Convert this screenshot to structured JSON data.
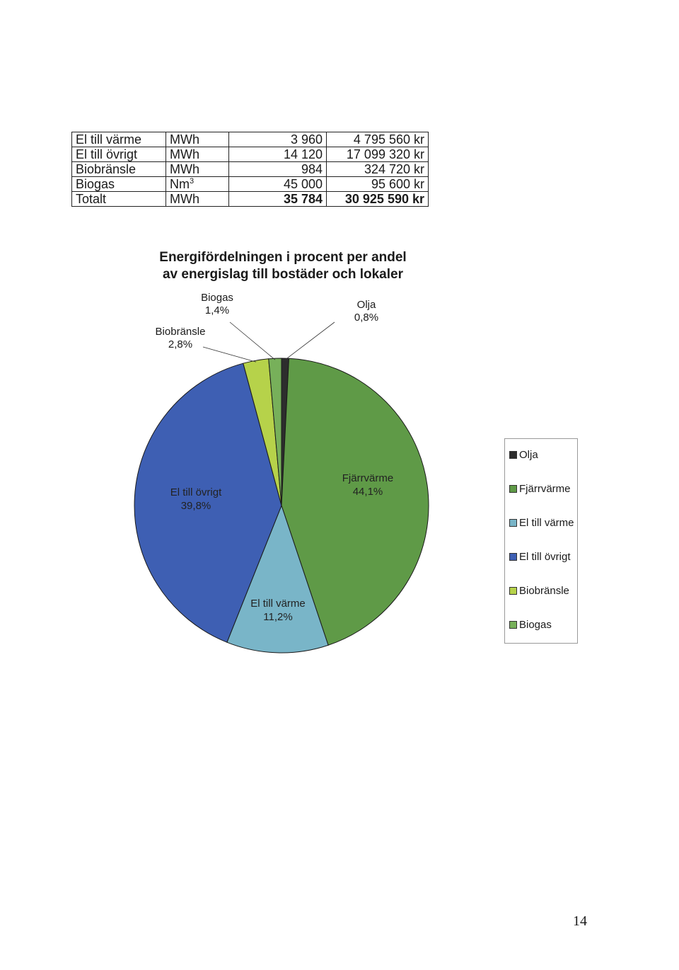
{
  "table": {
    "rows": [
      {
        "name": "El till värme",
        "unit": "MWh",
        "unit_sup": "",
        "amount": "3 960",
        "cost": "4 795 560 kr"
      },
      {
        "name": "El till övrigt",
        "unit": "MWh",
        "unit_sup": "",
        "amount": "14 120",
        "cost": "17 099 320 kr"
      },
      {
        "name": "Biobränsle",
        "unit": "MWh",
        "unit_sup": "",
        "amount": "984",
        "cost": "324 720 kr"
      },
      {
        "name": "Biogas",
        "unit": "Nm",
        "unit_sup": "3",
        "amount": "45 000",
        "cost": "95 600 kr"
      }
    ],
    "total": {
      "name": "Totalt",
      "unit": "MWh",
      "amount": "35 784",
      "cost": "30 925 590 kr"
    }
  },
  "chart_title_line1": "Energifördelningen i procent per andel",
  "chart_title_line2": "av energislag till bostäder och lokaler",
  "chart_data": {
    "type": "pie",
    "title": "Energifördelningen i procent per andel av energislag till bostäder och lokaler",
    "unit": "%",
    "start": "top",
    "direction": "clockwise",
    "legend_position": "right",
    "slices": [
      {
        "name": "Olja",
        "value": 0.8,
        "value_label": "0,8%",
        "color": "#2d2d2d"
      },
      {
        "name": "Fjärrvärme",
        "value": 44.1,
        "value_label": "44,1%",
        "color": "#5f9a47"
      },
      {
        "name": "El till värme",
        "value": 11.2,
        "value_label": "11,2%",
        "color": "#79b5c8"
      },
      {
        "name": "El till övrigt",
        "value": 39.8,
        "value_label": "39,8%",
        "color": "#3e5fb3"
      },
      {
        "name": "Biobränsle",
        "value": 2.8,
        "value_label": "2,8%",
        "color": "#b6d24a"
      },
      {
        "name": "Biogas",
        "value": 1.4,
        "value_label": "1,4%",
        "color": "#77b05a"
      }
    ]
  },
  "page_number": "14"
}
